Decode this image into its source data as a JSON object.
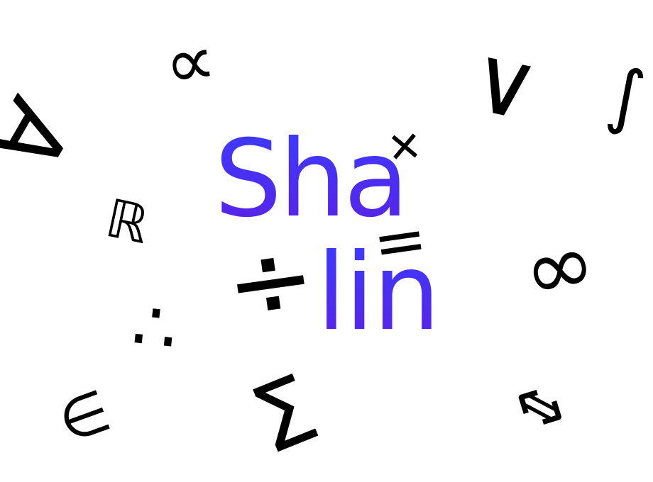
{
  "logo": {
    "line_1": "Sha",
    "line_2": "lin",
    "colors": {
      "gradient_top": "#3b3bff",
      "gradient_bottom": "#5a22e6",
      "glyph": "#000000",
      "background": "#ffffff"
    }
  },
  "symbols": {
    "for_all": "∀",
    "proportional": "∝",
    "or": "∨",
    "integral": "∫",
    "plus": "+",
    "reals": "ℝ",
    "equals": "=",
    "divide": "÷",
    "infinity": "∞",
    "therefore": "∴",
    "element_of": "∈",
    "sum": "Σ",
    "double_arrow": "⇔"
  }
}
